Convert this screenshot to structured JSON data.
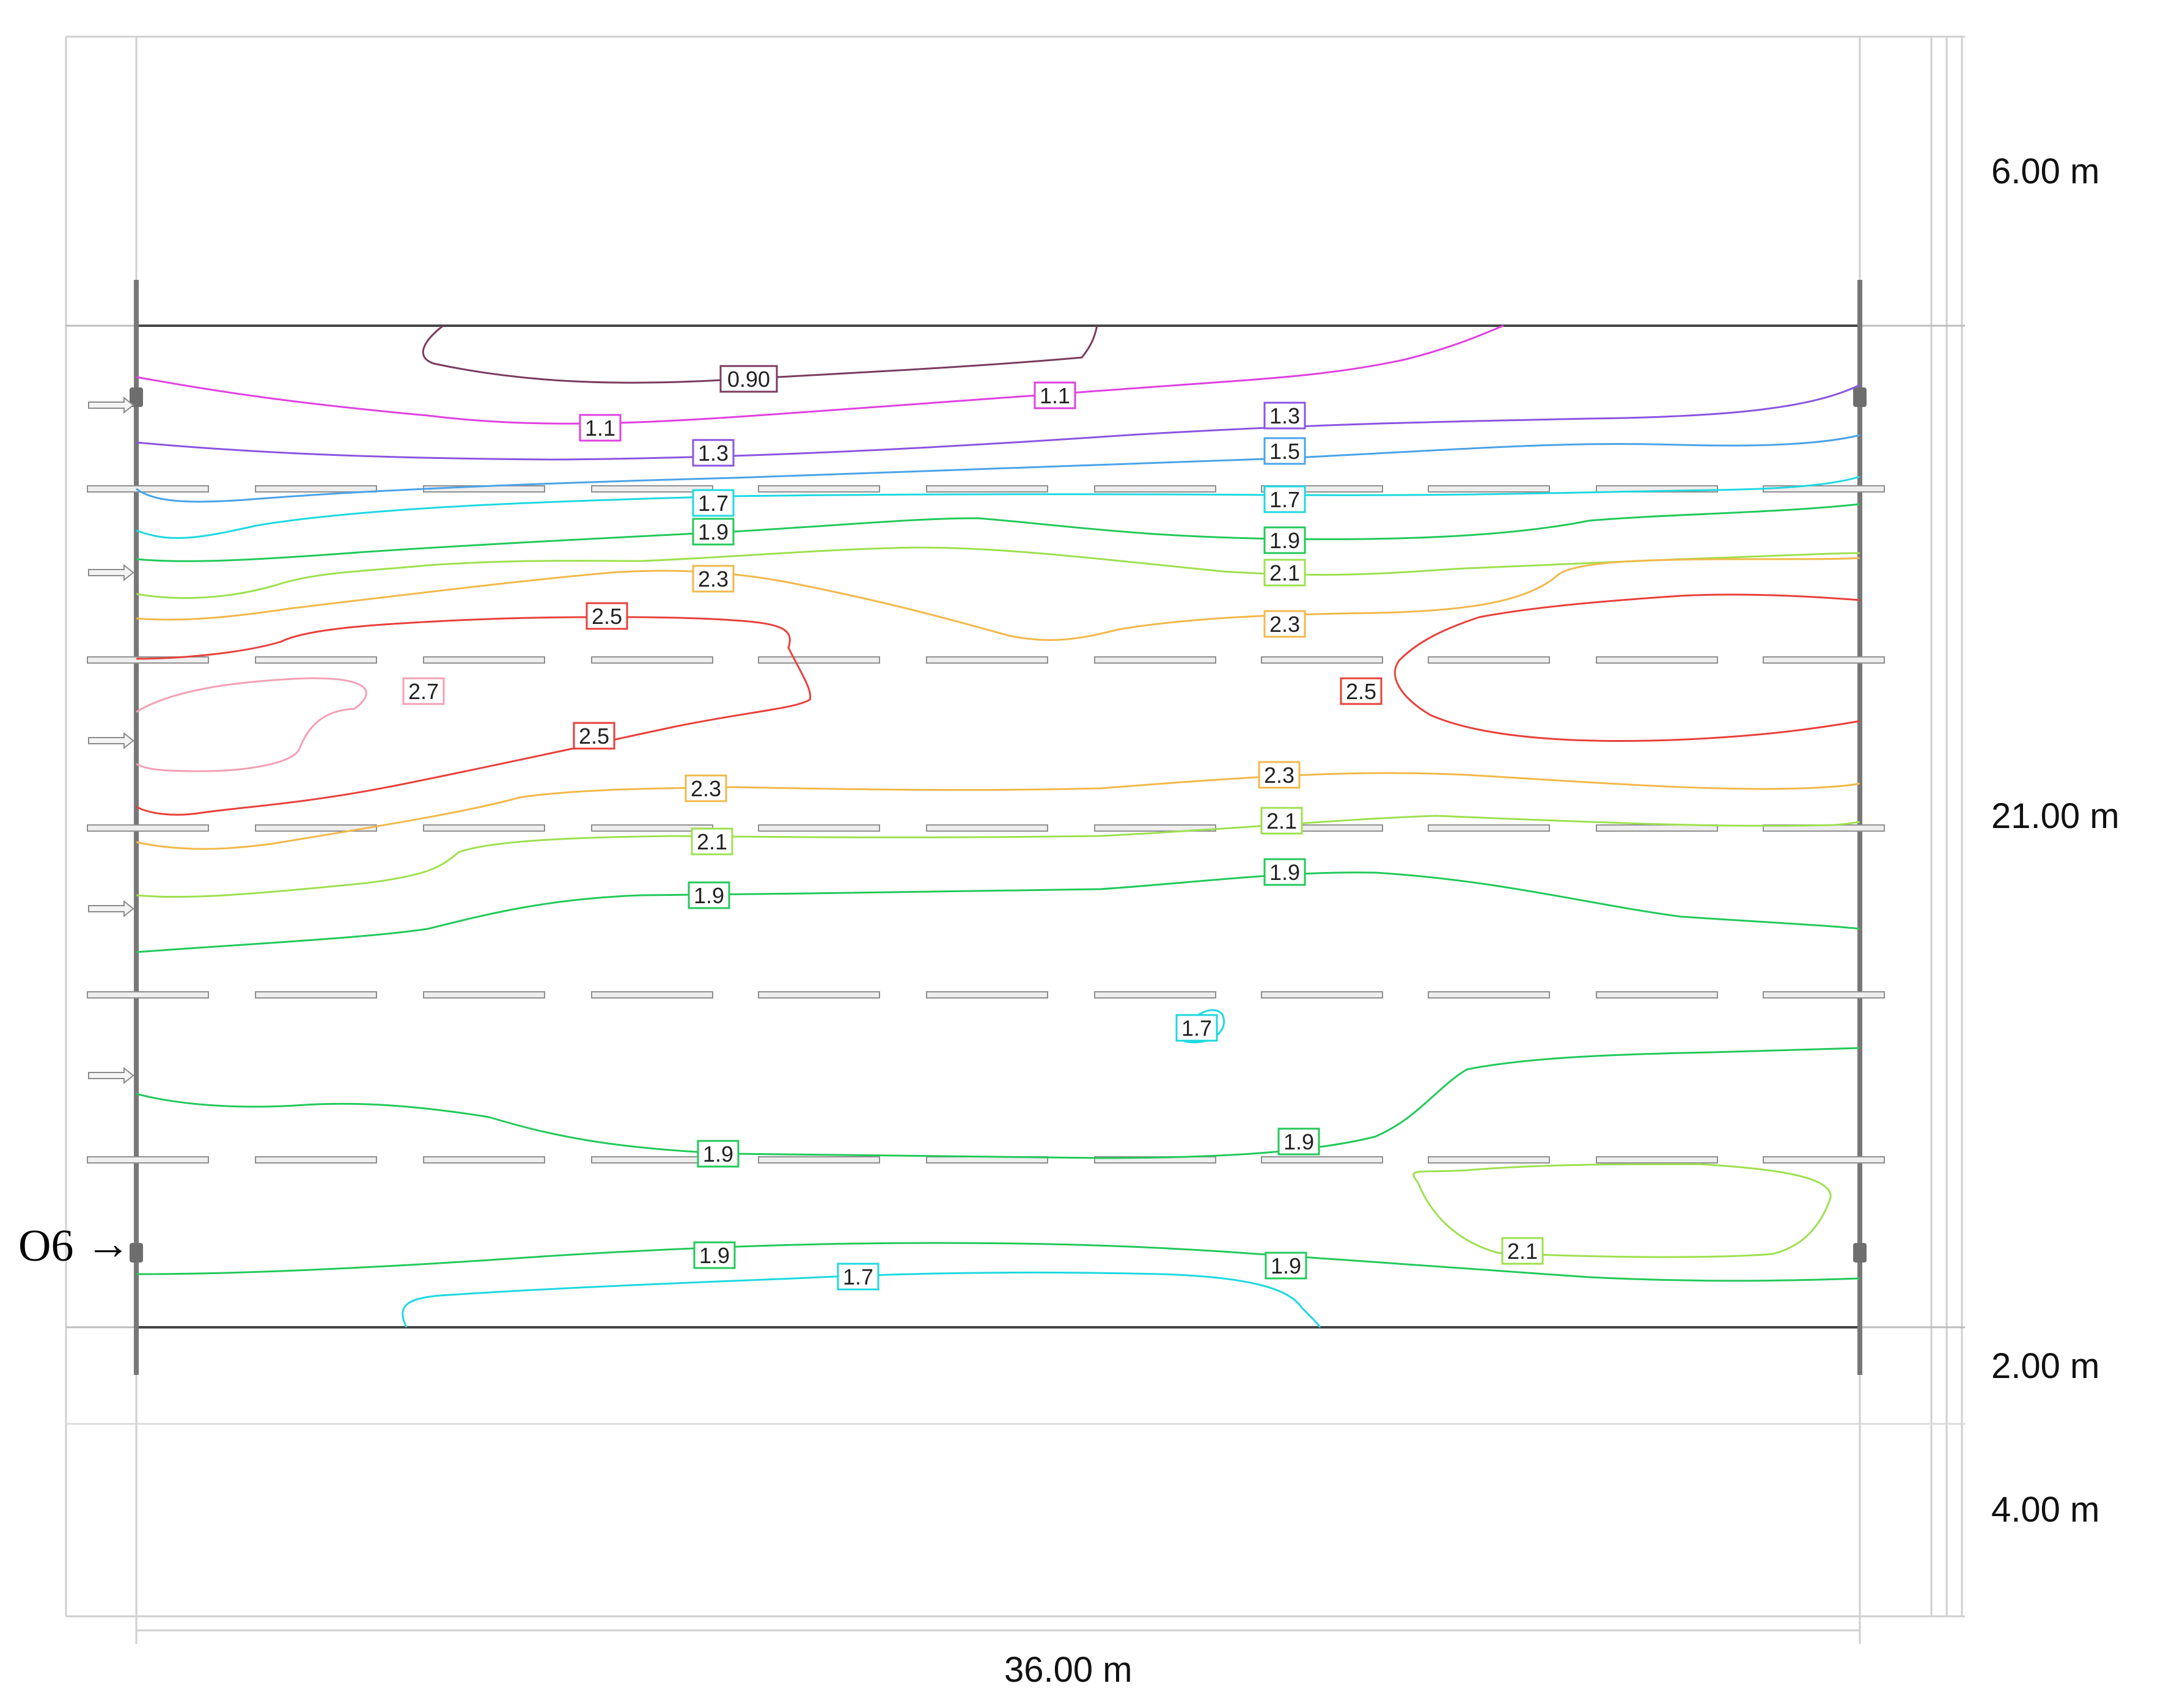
{
  "dimensions": {
    "top_margin": "6.00 m",
    "room_depth": "21.00 m",
    "bottom_margin": "2.00 m",
    "lower_band": "4.00 m",
    "room_width": "36.00 m"
  },
  "marker": {
    "label": "O6",
    "arrow": "→"
  },
  "colors": {
    "c090": "#7a3b5e",
    "c11": "#e040e0",
    "c13": "#8a55e0",
    "c15": "#4aa3e8",
    "c17": "#1ed8e0",
    "c19": "#22c95a",
    "c21": "#9ee050",
    "c23": "#f2b84a",
    "c25": "#e8403a",
    "c27": "#f2a0b4"
  },
  "contour_labels": [
    {
      "text": "0.90",
      "color": "c090"
    },
    {
      "text": "1.1",
      "color": "c11"
    },
    {
      "text": "1.1",
      "color": "c11"
    },
    {
      "text": "1.3",
      "color": "c13"
    },
    {
      "text": "1.3",
      "color": "c13"
    },
    {
      "text": "1.5",
      "color": "c15"
    },
    {
      "text": "1.7",
      "color": "c17"
    },
    {
      "text": "1.7",
      "color": "c17"
    },
    {
      "text": "1.9",
      "color": "c19"
    },
    {
      "text": "1.9",
      "color": "c19"
    },
    {
      "text": "2.3",
      "color": "c23"
    },
    {
      "text": "2.1",
      "color": "c21"
    },
    {
      "text": "2.5",
      "color": "c25"
    },
    {
      "text": "2.3",
      "color": "c23"
    },
    {
      "text": "2.7",
      "color": "c27"
    },
    {
      "text": "2.5",
      "color": "c25"
    },
    {
      "text": "2.5",
      "color": "c25"
    },
    {
      "text": "2.3",
      "color": "c23"
    },
    {
      "text": "2.3",
      "color": "c23"
    },
    {
      "text": "2.1",
      "color": "c21"
    },
    {
      "text": "2.1",
      "color": "c21"
    },
    {
      "text": "1.9",
      "color": "c19"
    },
    {
      "text": "1.9",
      "color": "c19"
    },
    {
      "text": "1.7",
      "color": "c17"
    },
    {
      "text": "1.9",
      "color": "c19"
    },
    {
      "text": "1.9",
      "color": "c19"
    },
    {
      "text": "2.1",
      "color": "c21"
    },
    {
      "text": "1.9",
      "color": "c19"
    },
    {
      "text": "1.7",
      "color": "c17"
    },
    {
      "text": "1.9",
      "color": "c19"
    }
  ]
}
